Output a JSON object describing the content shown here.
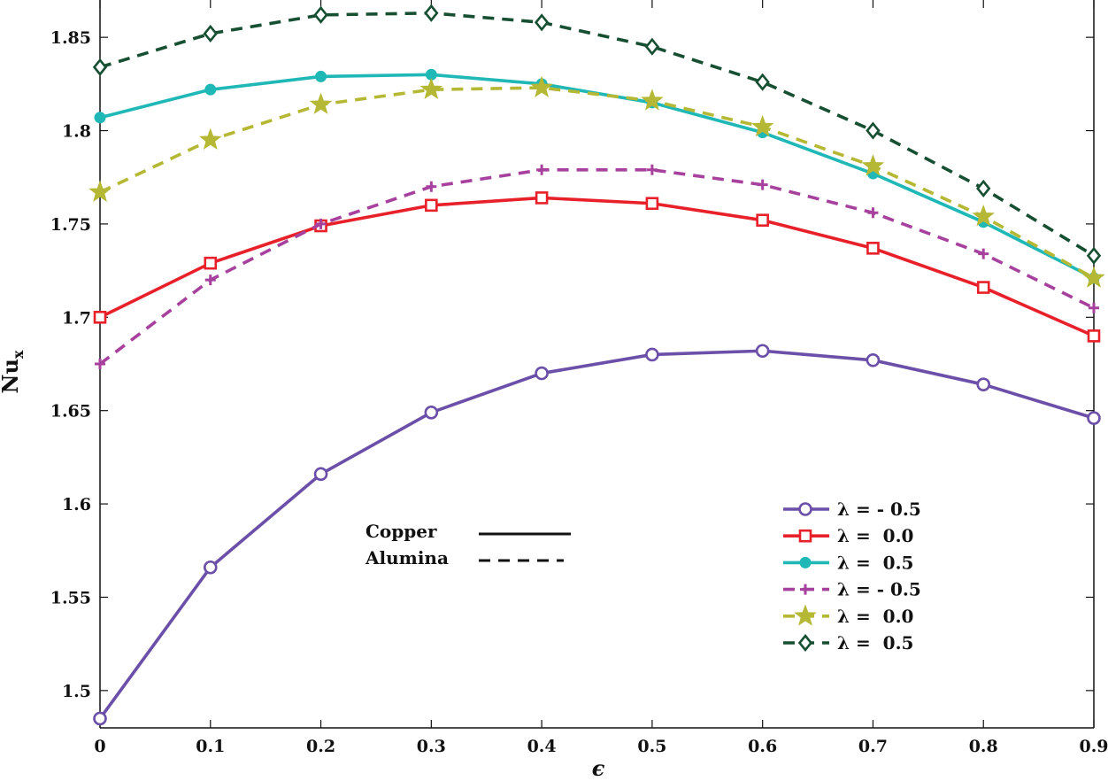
{
  "chart_data": {
    "type": "line",
    "xlabel": "ϵ",
    "ylabel": "Nu",
    "ylabel_subscript": "x",
    "xlim": [
      0,
      0.9
    ],
    "ylim": [
      1.48,
      1.87
    ],
    "x": [
      0,
      0.1,
      0.2,
      0.3,
      0.4,
      0.5,
      0.6,
      0.7,
      0.8,
      0.9
    ],
    "x_ticks": [
      0,
      0.1,
      0.2,
      0.3,
      0.4,
      0.5,
      0.6,
      0.7,
      0.8,
      0.9
    ],
    "x_tick_labels": [
      "0",
      "0.1",
      "0.2",
      "0.3",
      "0.4",
      "0.5",
      "0.6",
      "0.7",
      "0.8",
      "0.9"
    ],
    "y_ticks": [
      1.5,
      1.55,
      1.6,
      1.65,
      1.7,
      1.75,
      1.8,
      1.85
    ],
    "y_tick_labels": [
      "1.5",
      "1.55",
      "1.6",
      "1.65",
      "1.7",
      "1.75",
      "1.8",
      "1.85"
    ],
    "grid": false,
    "legend_position": "bottom-right",
    "series": [
      {
        "name": "λ = - 0.5",
        "material": "Copper",
        "color": "#6b4fa8",
        "dash": "solid",
        "marker": "circle-open",
        "values": [
          1.485,
          1.566,
          1.616,
          1.649,
          1.67,
          1.68,
          1.682,
          1.677,
          1.664,
          1.646
        ]
      },
      {
        "name": "λ =  0.0",
        "material": "Copper",
        "color": "#e8202a",
        "dash": "solid",
        "marker": "square-open",
        "values": [
          1.7,
          1.729,
          1.749,
          1.76,
          1.764,
          1.761,
          1.752,
          1.737,
          1.716,
          1.69
        ]
      },
      {
        "name": "λ =  0.5",
        "material": "Copper",
        "color": "#1fb8b6",
        "dash": "solid",
        "marker": "circle-filled",
        "values": [
          1.807,
          1.822,
          1.829,
          1.83,
          1.825,
          1.815,
          1.799,
          1.777,
          1.751,
          1.721
        ]
      },
      {
        "name": "λ = - 0.5",
        "material": "Alumina",
        "color": "#a7419e",
        "dash": "dashed",
        "marker": "plus",
        "values": [
          1.675,
          1.72,
          1.75,
          1.77,
          1.779,
          1.779,
          1.771,
          1.756,
          1.734,
          1.705
        ]
      },
      {
        "name": "λ =  0.0",
        "material": "Alumina",
        "color": "#b5b834",
        "dash": "dashed",
        "marker": "star",
        "values": [
          1.767,
          1.795,
          1.814,
          1.822,
          1.823,
          1.816,
          1.802,
          1.781,
          1.754,
          1.721
        ]
      },
      {
        "name": "λ =  0.5",
        "material": "Alumina",
        "color": "#174f33",
        "dash": "dashed",
        "marker": "diamond-open",
        "values": [
          1.834,
          1.852,
          1.862,
          1.863,
          1.858,
          1.845,
          1.826,
          1.8,
          1.769,
          1.733
        ]
      }
    ],
    "annotations": [
      {
        "text": "Copper",
        "line_style": "solid"
      },
      {
        "text": "Alumina",
        "line_style": "dashed"
      }
    ]
  }
}
